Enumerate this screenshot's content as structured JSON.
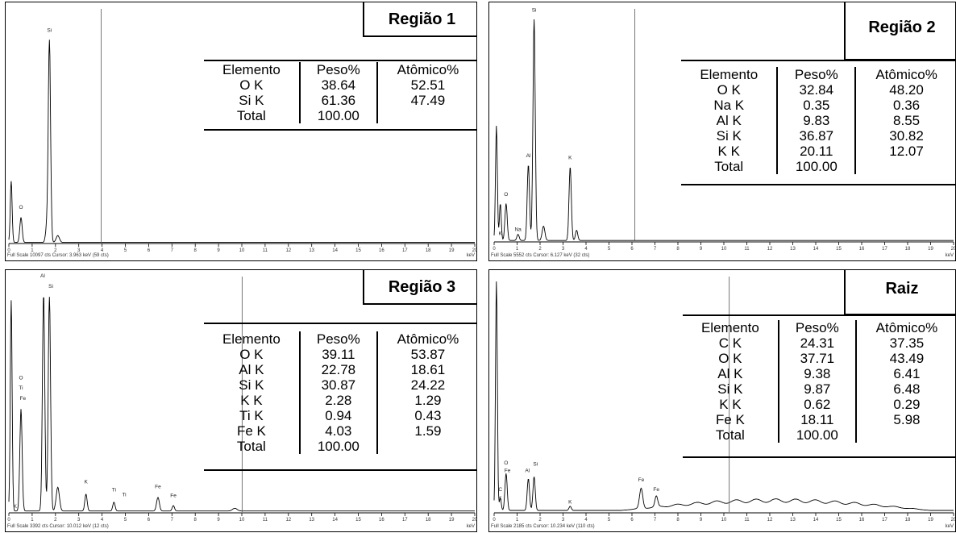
{
  "chart_data": [
    {
      "type": "line",
      "title": "Região 1",
      "xlabel": "keV",
      "xlim": [
        0,
        20
      ],
      "xticks": [
        0,
        1,
        2,
        3,
        4,
        5,
        6,
        7,
        8,
        9,
        10,
        11,
        12,
        13,
        14,
        15,
        16,
        17,
        18,
        19,
        20
      ],
      "cursor_kev": 3.963,
      "footer": "Full Scale 10097 cts  Cursor: 3.963 keV (59 cts)",
      "ymax": 10097,
      "peaks": [
        {
          "x": 0.1,
          "y": 2700,
          "w": 0.04
        },
        {
          "x": 0.52,
          "y": 1100,
          "w": 0.05
        },
        {
          "x": 1.74,
          "y": 8900,
          "w": 0.05
        },
        {
          "x": 1.62,
          "y": 600,
          "w": 0.05
        },
        {
          "x": 2.1,
          "y": 300,
          "w": 0.07
        }
      ],
      "peak_labels": [
        {
          "text": "Si",
          "x": 1.74,
          "y": 9300
        },
        {
          "text": "O",
          "x": 0.52,
          "y": 1500
        }
      ],
      "table": {
        "headers": [
          "Elemento",
          "Peso%",
          "Atômico%"
        ],
        "rows": [
          [
            "O K",
            "38.64",
            "52.51"
          ],
          [
            "Si K",
            "61.36",
            "47.49"
          ],
          [
            "Total",
            "100.00",
            ""
          ]
        ]
      }
    },
    {
      "type": "line",
      "title": "Região 2",
      "xlabel": "keV",
      "xlim": [
        0,
        20
      ],
      "xticks": [
        0,
        1,
        2,
        3,
        4,
        5,
        6,
        7,
        8,
        9,
        10,
        11,
        12,
        13,
        14,
        15,
        16,
        17,
        18,
        19,
        20
      ],
      "cursor_kev": 6.127,
      "footer": "Full Scale 5552 cts  Cursor: 6.127 keV (32 cts)",
      "ymax": 5552,
      "peaks": [
        {
          "x": 0.1,
          "y": 2800,
          "w": 0.04
        },
        {
          "x": 0.27,
          "y": 900,
          "w": 0.04
        },
        {
          "x": 0.52,
          "y": 900,
          "w": 0.05
        },
        {
          "x": 1.04,
          "y": 150,
          "w": 0.05
        },
        {
          "x": 1.49,
          "y": 1850,
          "w": 0.05
        },
        {
          "x": 1.74,
          "y": 5400,
          "w": 0.05
        },
        {
          "x": 2.15,
          "y": 350,
          "w": 0.06
        },
        {
          "x": 3.31,
          "y": 1800,
          "w": 0.05
        },
        {
          "x": 3.59,
          "y": 250,
          "w": 0.05
        }
      ],
      "peak_labels": [
        {
          "text": "Si",
          "x": 1.74,
          "y": 5600
        },
        {
          "text": "Al",
          "x": 1.49,
          "y": 2050
        },
        {
          "text": "K",
          "x": 3.31,
          "y": 2000
        },
        {
          "text": "O",
          "x": 0.52,
          "y": 1100
        },
        {
          "text": "Na",
          "x": 1.04,
          "y": 250
        },
        {
          "text": "K",
          "x": 0.27,
          "y": 150
        }
      ],
      "table": {
        "headers": [
          "Elemento",
          "Peso%",
          "Atômico%"
        ],
        "rows": [
          [
            "O K",
            "32.84",
            "48.20"
          ],
          [
            "Na K",
            "0.35",
            "0.36"
          ],
          [
            "Al K",
            "9.83",
            "8.55"
          ],
          [
            "Si K",
            "36.87",
            "30.82"
          ],
          [
            "K K",
            "20.11",
            "12.07"
          ],
          [
            "Total",
            "100.00",
            ""
          ]
        ]
      }
    },
    {
      "type": "line",
      "title": "Região 3",
      "xlabel": "keV",
      "xlim": [
        0,
        20
      ],
      "xticks": [
        0,
        1,
        2,
        3,
        4,
        5,
        6,
        7,
        8,
        9,
        10,
        11,
        12,
        13,
        14,
        15,
        16,
        17,
        18,
        19,
        20
      ],
      "cursor_kev": 10.012,
      "footer": "Full Scale 3392 cts  Cursor: 10.012 keV (12 cts)",
      "ymax": 3392,
      "peaks": [
        {
          "x": 0.1,
          "y": 3100,
          "w": 0.04
        },
        {
          "x": 0.52,
          "y": 1500,
          "w": 0.05
        },
        {
          "x": 1.49,
          "y": 3200,
          "w": 0.05
        },
        {
          "x": 1.74,
          "y": 3150,
          "w": 0.05
        },
        {
          "x": 2.1,
          "y": 350,
          "w": 0.07
        },
        {
          "x": 3.31,
          "y": 250,
          "w": 0.05
        },
        {
          "x": 4.51,
          "y": 130,
          "w": 0.05
        },
        {
          "x": 6.4,
          "y": 200,
          "w": 0.06
        },
        {
          "x": 7.06,
          "y": 80,
          "w": 0.05
        },
        {
          "x": 9.7,
          "y": 40,
          "w": 0.1
        }
      ],
      "peak_labels": [
        {
          "text": "Al",
          "x": 1.45,
          "y": 3450
        },
        {
          "text": "Si",
          "x": 1.8,
          "y": 3300
        },
        {
          "text": "O",
          "x": 0.52,
          "y": 1950
        },
        {
          "text": "Ti",
          "x": 0.52,
          "y": 1800
        },
        {
          "text": "Fe",
          "x": 0.6,
          "y": 1650
        },
        {
          "text": "K",
          "x": 3.31,
          "y": 420
        },
        {
          "text": "Ti",
          "x": 4.51,
          "y": 300
        },
        {
          "text": "Ti",
          "x": 4.95,
          "y": 230
        },
        {
          "text": "Fe",
          "x": 6.4,
          "y": 350
        },
        {
          "text": "Fe",
          "x": 7.06,
          "y": 220
        },
        {
          "text": "K",
          "x": 0.27,
          "y": 60
        }
      ],
      "table": {
        "headers": [
          "Elemento",
          "Peso%",
          "Atômico%"
        ],
        "rows": [
          [
            "O K",
            "39.11",
            "53.87"
          ],
          [
            "Al K",
            "22.78",
            "18.61"
          ],
          [
            "Si K",
            "30.87",
            "24.22"
          ],
          [
            "K K",
            "2.28",
            "1.29"
          ],
          [
            "Ti K",
            "0.94",
            "0.43"
          ],
          [
            "Fe K",
            "4.03",
            "1.59"
          ],
          [
            "Total",
            "100.00",
            ""
          ]
        ]
      }
    },
    {
      "type": "line",
      "title": "Raiz",
      "xlabel": "keV",
      "xlim": [
        0,
        20
      ],
      "xticks": [
        0,
        1,
        2,
        3,
        4,
        5,
        6,
        7,
        8,
        9,
        10,
        11,
        12,
        13,
        14,
        15,
        16,
        17,
        18,
        19,
        20
      ],
      "cursor_kev": 10.234,
      "footer": "Full Scale 2185 cts  Cursor: 10.234 keV (110 cts)",
      "ymax": 2185,
      "peaks": [
        {
          "x": 0.1,
          "y": 2185,
          "w": 0.04
        },
        {
          "x": 0.27,
          "y": 120,
          "w": 0.04
        },
        {
          "x": 0.52,
          "y": 350,
          "w": 0.05
        },
        {
          "x": 1.49,
          "y": 300,
          "w": 0.05
        },
        {
          "x": 1.74,
          "y": 320,
          "w": 0.05
        },
        {
          "x": 3.31,
          "y": 40,
          "w": 0.05
        },
        {
          "x": 6.4,
          "y": 190,
          "w": 0.07
        },
        {
          "x": 7.06,
          "y": 100,
          "w": 0.06
        }
      ],
      "background": {
        "start": 5.5,
        "peak_x": 10,
        "peak_y": 110,
        "end": 19
      },
      "peak_labels": [
        {
          "text": "O",
          "x": 0.52,
          "y": 450
        },
        {
          "text": "Fe",
          "x": 0.58,
          "y": 380
        },
        {
          "text": "Si",
          "x": 1.8,
          "y": 440
        },
        {
          "text": "Al",
          "x": 1.45,
          "y": 380
        },
        {
          "text": "C",
          "x": 0.27,
          "y": 200
        },
        {
          "text": "K",
          "x": 0.25,
          "y": 120
        },
        {
          "text": "K",
          "x": 3.31,
          "y": 80
        },
        {
          "text": "Fe",
          "x": 6.4,
          "y": 290
        },
        {
          "text": "Fe",
          "x": 7.06,
          "y": 200
        }
      ],
      "table": {
        "headers": [
          "Elemento",
          "Peso%",
          "Atômico%"
        ],
        "rows": [
          [
            "C K",
            "24.31",
            "37.35"
          ],
          [
            "O K",
            "37.71",
            "43.49"
          ],
          [
            "Al K",
            "9.38",
            "6.41"
          ],
          [
            "Si K",
            "9.87",
            "6.48"
          ],
          [
            "K K",
            "0.62",
            "0.29"
          ],
          [
            "Fe K",
            "18.11",
            "5.98"
          ],
          [
            "Total",
            "100.00",
            ""
          ]
        ]
      }
    }
  ]
}
